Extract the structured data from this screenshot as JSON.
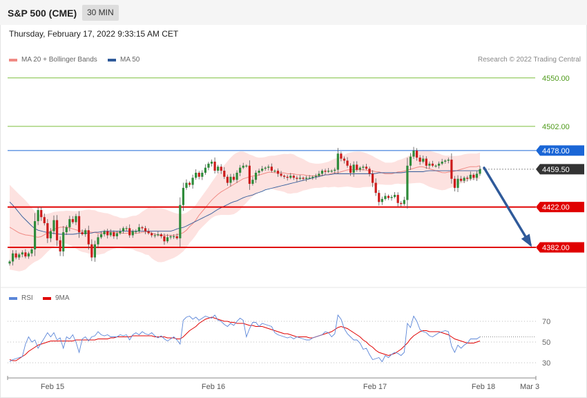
{
  "header": {
    "title": "S&P 500 (CME)",
    "interval": "30 MIN"
  },
  "timestamp": "Thursday, February 17, 2022 9:33:15 AM CET",
  "legend": {
    "main": [
      {
        "label": "MA 20 + Bollinger Bands",
        "color": "#f08a84"
      },
      {
        "label": "MA 50",
        "color": "#2f5a9a"
      }
    ],
    "indicator": [
      {
        "label": "RSI",
        "color": "#5b86d8"
      },
      {
        "label": "9MA",
        "color": "#e00000"
      }
    ]
  },
  "credit": "Research © 2022 Trading Central",
  "colors": {
    "up": "#2e8b3a",
    "down": "#cc1b1b",
    "arrow": "#2f5a9a"
  },
  "chart_data": [
    {
      "type": "candlestick",
      "ylim": [
        4345,
        4567
      ],
      "x_ticks": [
        "Feb 15",
        "Feb 16",
        "Feb 17",
        "Feb 18",
        "Mar 3"
      ],
      "price_levels": [
        {
          "value": 4550.0,
          "label": "4550.00",
          "kind": "target",
          "color": "#7cbf3c"
        },
        {
          "value": 4502.0,
          "label": "4502.00",
          "kind": "target",
          "color": "#7cbf3c"
        },
        {
          "value": 4478.0,
          "label": "4478.00",
          "kind": "pivot",
          "color": "#1a66d6"
        },
        {
          "value": 4459.5,
          "label": "4459.50",
          "kind": "last",
          "color": "#333333"
        },
        {
          "value": 4422.0,
          "label": "4422.00",
          "kind": "support",
          "color": "#e00000"
        },
        {
          "value": 4382.0,
          "label": "4382.00",
          "kind": "support",
          "color": "#e00000"
        }
      ],
      "closes": [
        4368,
        4376,
        4372,
        4375,
        4377,
        4373,
        4376,
        4380,
        4408,
        4419,
        4412,
        4406,
        4391,
        4398,
        4409,
        4389,
        4378,
        4397,
        4402,
        4410,
        4407,
        4413,
        4397,
        4395,
        4399,
        4385,
        4372,
        4385,
        4392,
        4395,
        4398,
        4394,
        4397,
        4393,
        4396,
        4398,
        4401,
        4401,
        4394,
        4398,
        4398,
        4402,
        4401,
        4398,
        4396,
        4394,
        4394,
        4395,
        4393,
        4388,
        4392,
        4393,
        4393,
        4391,
        4424,
        4441,
        4446,
        4444,
        4451,
        4456,
        4452,
        4456,
        4461,
        4465,
        4467,
        4458,
        4462,
        4458,
        4452,
        4446,
        4452,
        4449,
        4456,
        4461,
        4463,
        4463,
        4445,
        4449,
        4456,
        4458,
        4460,
        4461,
        4462,
        4458,
        4458,
        4455,
        4453,
        4452,
        4451,
        4453,
        4451,
        4450,
        4451,
        4450,
        4451,
        4451,
        4452,
        4453,
        4455,
        4458,
        4457,
        4458,
        4458,
        4459,
        4475,
        4470,
        4468,
        4463,
        4456,
        4464,
        4459,
        4461,
        4462,
        4460,
        4455,
        4446,
        4436,
        4427,
        4430,
        4433,
        4431,
        4432,
        4434,
        4426,
        4425,
        4429,
        4463,
        4472,
        4478,
        4471,
        4467,
        4470,
        4463,
        4465,
        4463,
        4463,
        4465,
        4467,
        4468,
        4469,
        4450,
        4441,
        4450,
        4448,
        4451,
        4450,
        4454,
        4451,
        4455,
        4459.5
      ],
      "ma20": [
        4402,
        4400,
        4398,
        4396,
        4395,
        4394,
        4394,
        4393,
        4392,
        4392,
        4394,
        4396,
        4398,
        4400,
        4401,
        4402,
        4402,
        4402,
        4401,
        4400,
        4399,
        4398,
        4398,
        4398,
        4397,
        4397,
        4396,
        4396,
        4396,
        4397,
        4397,
        4397,
        4397,
        4396,
        4396,
        4396,
        4397,
        4396,
        4396,
        4397,
        4397,
        4398,
        4396,
        4395,
        4394,
        4394,
        4394,
        4394,
        4394,
        4394,
        4395,
        4396,
        4398,
        4402,
        4405,
        4409,
        4414,
        4418,
        4422,
        4426,
        4430,
        4433,
        4436,
        4438,
        4440,
        4442,
        4444,
        4446,
        4448,
        4450,
        4451,
        4452,
        4453,
        4453,
        4454,
        4455,
        4456,
        4457,
        4456,
        4456,
        4456,
        4456,
        4455,
        4455,
        4455,
        4454,
        4454,
        4454,
        4453,
        4453,
        4453,
        4453,
        4453,
        4454,
        4454,
        4455,
        4456,
        4456,
        4457,
        4458,
        4459,
        4459,
        4459,
        4459,
        4459,
        4459,
        4458,
        4458,
        4457,
        4457,
        4456,
        4455,
        4455,
        4455,
        4456,
        4457,
        4457,
        4458,
        4459,
        4460,
        4461,
        4462,
        4462,
        4461,
        4460,
        4459,
        4458,
        4457,
        4456,
        4456,
        4457,
        4457,
        4458,
        4459,
        4460,
        4461,
        4462,
        4462,
        4462,
        4463
      ],
      "ma50": [
        4427,
        4423,
        4418,
        4413,
        4409,
        4405,
        4401,
        4399,
        4398,
        4397,
        4396,
        4396,
        4395,
        4395,
        4395,
        4395,
        4395,
        4396,
        4396,
        4396,
        4396,
        4397,
        4397,
        4398,
        4398,
        4398,
        4398,
        4398,
        4398,
        4398,
        4398,
        4398,
        4398,
        4398,
        4398,
        4398,
        4398,
        4398,
        4398,
        4398,
        4398,
        4400,
        4401,
        4402,
        4404,
        4406,
        4408,
        4410,
        4412,
        4414,
        4416,
        4419,
        4421,
        4423,
        4425,
        4427,
        4428,
        4430,
        4432,
        4433,
        4434,
        4436,
        4437,
        4439,
        4440,
        4441,
        4442,
        4443,
        4444,
        4445,
        4446,
        4447,
        4448,
        4449,
        4450,
        4451,
        4452,
        4453,
        4454,
        4454,
        4455,
        4455,
        4455,
        4455,
        4455,
        4455,
        4455,
        4455,
        4455,
        4455,
        4455,
        4456,
        4456,
        4456,
        4456,
        4456,
        4456,
        4456,
        4457,
        4457,
        4457,
        4457,
        4457,
        4458,
        4458,
        4458,
        4458,
        4458,
        4458,
        4458,
        4458,
        4458,
        4458,
        4458,
        4458,
        4458,
        4458
      ],
      "bollinger_width": [
        42,
        40,
        38,
        35,
        30,
        25,
        22,
        20,
        18,
        17,
        16,
        16,
        17,
        18,
        20,
        21,
        22,
        22,
        21,
        20,
        18,
        16,
        15,
        15,
        16,
        17,
        19,
        22,
        24,
        26,
        27,
        26,
        24,
        22,
        20,
        18,
        16,
        15,
        15,
        16,
        17,
        19,
        22,
        25,
        28,
        30,
        29,
        26,
        22,
        19,
        17,
        16,
        16,
        17,
        18,
        19,
        20,
        19,
        17,
        15,
        13,
        12,
        12,
        12,
        13,
        14,
        15,
        16,
        17,
        18,
        18,
        17,
        16,
        14,
        12,
        11,
        11,
        11,
        12,
        13,
        14,
        15,
        16,
        17,
        18,
        18,
        18,
        17,
        16,
        15,
        14,
        14,
        13,
        13,
        13
      ],
      "projection_arrow": {
        "from": 4459.5,
        "to": 4382.0
      }
    },
    {
      "type": "line",
      "name": "RSI",
      "y_ticks": [
        30,
        50,
        70
      ],
      "ylim": [
        20,
        80
      ],
      "series": [
        {
          "name": "RSI",
          "color": "#5b86d8",
          "values": [
            31,
            33,
            34,
            35,
            36,
            48,
            55,
            50,
            52,
            44,
            49,
            54,
            59,
            55,
            59,
            52,
            54,
            44,
            55,
            53,
            57,
            50,
            40,
            53,
            55,
            51,
            55,
            56,
            60,
            57,
            56,
            57,
            55,
            55,
            55,
            57,
            56,
            57,
            52,
            57,
            59,
            57,
            60,
            58,
            57,
            59,
            56,
            54,
            56,
            53,
            51,
            53,
            55,
            52,
            48,
            71,
            74,
            75,
            72,
            74,
            71,
            73,
            75,
            74,
            73,
            76,
            71,
            70,
            67,
            65,
            68,
            66,
            70,
            73,
            71,
            55,
            63,
            69,
            69,
            65,
            68,
            67,
            66,
            65,
            59,
            57,
            56,
            55,
            54,
            55,
            53,
            55,
            54,
            53,
            52,
            52,
            54,
            55,
            56,
            57,
            60,
            59,
            55,
            58,
            76,
            72,
            63,
            58,
            55,
            52,
            52,
            49,
            43,
            44,
            38,
            33,
            34,
            35,
            31,
            37,
            35,
            38,
            40,
            39,
            37,
            40,
            68,
            64,
            75,
            70,
            62,
            60,
            59,
            56,
            55,
            57,
            59,
            60,
            61,
            60,
            46,
            40,
            47,
            44,
            47,
            49,
            53,
            53,
            53,
            55
          ]
        },
        {
          "name": "9MA",
          "color": "#e00000",
          "values": [
            33,
            32,
            32,
            34,
            36,
            38,
            41,
            43,
            45,
            47,
            48,
            49,
            50,
            51,
            51,
            51,
            51,
            51,
            51,
            51,
            51,
            52,
            52,
            52,
            52,
            52,
            52,
            52,
            53,
            53,
            53,
            53,
            54,
            54,
            55,
            55,
            55,
            55,
            55,
            56,
            56,
            56,
            56,
            56,
            56,
            56,
            55,
            55,
            55,
            55,
            54,
            54,
            54,
            53,
            53,
            55,
            58,
            61,
            63,
            65,
            68,
            70,
            72,
            73,
            74,
            73,
            72,
            71,
            70,
            70,
            69,
            69,
            68,
            68,
            68,
            67,
            66,
            66,
            65,
            65,
            65,
            64,
            63,
            62,
            61,
            60,
            59,
            58,
            58,
            57,
            56,
            55,
            55,
            55,
            55,
            54,
            54,
            55,
            56,
            57,
            58,
            59,
            60,
            62,
            64,
            65,
            64,
            63,
            61,
            59,
            57,
            55,
            52,
            50,
            47,
            45,
            42,
            40,
            39,
            38,
            37,
            38,
            39,
            41,
            43,
            46,
            49,
            53,
            56,
            58,
            60,
            61,
            61,
            60,
            60,
            60,
            60,
            59,
            58,
            57,
            55,
            53,
            52,
            51,
            50,
            49,
            49,
            49,
            50,
            51
          ]
        }
      ]
    }
  ]
}
